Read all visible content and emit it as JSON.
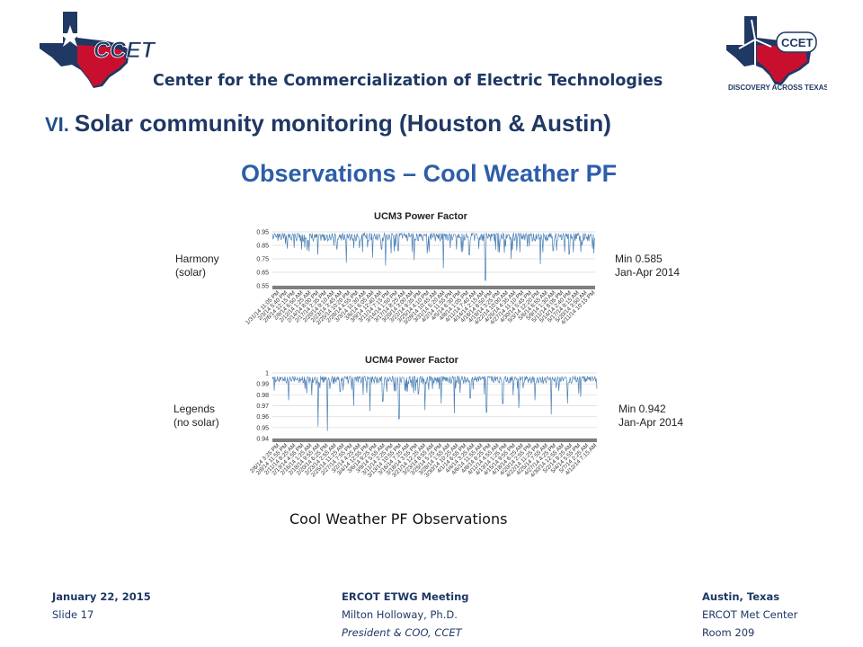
{
  "header": {
    "left_logo_text": "CCET",
    "right_logo_text": "CCET",
    "right_logo_tagline": "DISCOVERY ACROSS TEXAS",
    "org_name": "Center for the Commercialization of Electric Technologies",
    "section_number": "VI.",
    "section_title": "Solar community monitoring (Houston & Austin)"
  },
  "slide": {
    "title": "Observations – Cool Weather PF",
    "caption": "Cool Weather PF Observations"
  },
  "colors": {
    "navy": "#1f3864",
    "title_blue": "#2e5ea8",
    "series": "#4a7fb5",
    "texas_red": "#c8102e"
  },
  "chart_data": [
    {
      "type": "line",
      "title": "UCM3 Power Factor",
      "ylim": [
        0.55,
        0.95
      ],
      "y_ticks": [
        "0.95",
        "0.85",
        "0.75",
        "0.65",
        "0.55"
      ],
      "x_tick_labels": [
        "1/31/14 11:05 PM",
        "2/3/14 5:40 PM",
        "2/6/14 12:15 PM",
        "2/9/14 6:50 AM",
        "2/12/14 1:25 AM",
        "2/14/14 8:00 PM",
        "2/17/14 2:35 PM",
        "2/20/14 9:10 AM",
        "2/23/14 3:45 AM",
        "2/25/14 10:20 PM",
        "2/28/14 4:55 PM",
        "3/3/14 11:30 AM",
        "3/6/14 6:05 AM",
        "3/9/14 12:40 AM",
        "3/11/14 7:15 PM",
        "3/14/14 1:50 PM",
        "3/17/14 8:25 AM",
        "3/20/14 3:00 AM",
        "3/22/14 9:35 PM",
        "3/25/14 4:10 PM",
        "3/28/14 10:45 AM",
        "3/31/14 5:20 AM",
        "4/2/14 11:55 PM",
        "4/5/14 6:30 PM",
        "4/8/14 1:05 PM",
        "4/11/14 7:40 AM",
        "4/14/14 2:15 AM",
        "4/16/14 8:50 PM",
        "4/19/14 3:25 PM",
        "4/22/14 10:00 AM",
        "4/25/14 4:35 AM",
        "4/27/14 11:10 PM",
        "4/30/14 5:45 PM",
        "5/3/14 12:20 PM",
        "5/6/14 6:55 AM",
        "5/9/14 1:30 AM",
        "5/11/14 8:05 PM",
        "5/14/14 2:40 PM",
        "5/17/14 9:15 AM",
        "5/20/14 3:50 AM",
        "4/11/14 10:15 PM"
      ],
      "series": [
        {
          "typical_high": 0.94,
          "typical_low": 0.88,
          "dips": [
            [
              0.04,
              0.86
            ],
            [
              0.09,
              0.82
            ],
            [
              0.14,
              0.78
            ],
            [
              0.19,
              0.8
            ],
            [
              0.23,
              0.72
            ],
            [
              0.27,
              0.83
            ],
            [
              0.31,
              0.76
            ],
            [
              0.35,
              0.7
            ],
            [
              0.39,
              0.81
            ],
            [
              0.44,
              0.74
            ],
            [
              0.48,
              0.79
            ],
            [
              0.53,
              0.68
            ],
            [
              0.57,
              0.82
            ],
            [
              0.61,
              0.78
            ],
            [
              0.66,
              0.59
            ],
            [
              0.7,
              0.8
            ],
            [
              0.74,
              0.75
            ],
            [
              0.79,
              0.84
            ],
            [
              0.83,
              0.71
            ],
            [
              0.87,
              0.81
            ],
            [
              0.92,
              0.78
            ],
            [
              0.96,
              0.85
            ]
          ]
        }
      ],
      "side_label": [
        "Harmony",
        "(solar)"
      ],
      "annotation": [
        "Min 0.585",
        "Jan-Apr 2014"
      ]
    },
    {
      "type": "line",
      "title": "UCM4 Power Factor",
      "ylim": [
        0.94,
        1.0
      ],
      "y_ticks": [
        "1",
        "0.99",
        "0.98",
        "0.97",
        "0.96",
        "0.95",
        "0.94"
      ],
      "x_tick_labels": [
        "2/6/14 3:25 PM",
        "2/8/14 11:55 PM",
        "2/11/14 8:25 AM",
        "2/13/14 4:55 PM",
        "2/16/14 1:25 AM",
        "2/18/14 9:55 AM",
        "2/20/14 6:25 PM",
        "2/23/14 2:55 AM",
        "2/25/14 11:25 AM",
        "2/27/14 7:55 PM",
        "3/2/14 4:25 AM",
        "3/4/14 12:55 PM",
        "3/6/14 9:25 PM",
        "3/9/14 5:55 AM",
        "3/11/14 2:25 PM",
        "3/13/14 10:55 PM",
        "3/16/14 7:25 AM",
        "3/18/14 3:55 PM",
        "3/21/14 12:25 AM",
        "3/23/14 8:55 AM",
        "3/25/14 5:25 PM",
        "3/28/14 1:55 AM",
        "3/30/14 10:25 AM",
        "4/1/14 6:55 PM",
        "4/4/14 3:25 AM",
        "4/6/14 11:55 AM",
        "4/8/14 8:25 PM",
        "4/11/14 4:55 AM",
        "4/13/14 1:25 PM",
        "4/15/14 9:55 PM",
        "4/18/14 6:25 AM",
        "4/20/14 2:55 PM",
        "4/22/14 11:25 PM",
        "4/25/14 7:55 AM",
        "4/27/14 4:25 PM",
        "4/30/14 12:55 AM",
        "5/2/14 9:25 AM",
        "5/4/14 5:55 PM",
        "5/7/14 2:25 AM",
        "4/12/14 7:15 AM"
      ],
      "series": [
        {
          "typical_high": 0.997,
          "typical_low": 0.99,
          "dips": [
            [
              0.05,
              0.975
            ],
            [
              0.1,
              0.968
            ],
            [
              0.14,
              0.951
            ],
            [
              0.17,
              0.947
            ],
            [
              0.21,
              0.962
            ],
            [
              0.25,
              0.97
            ],
            [
              0.3,
              0.965
            ],
            [
              0.34,
              0.974
            ],
            [
              0.39,
              0.958
            ],
            [
              0.43,
              0.969
            ],
            [
              0.47,
              0.966
            ],
            [
              0.52,
              0.972
            ],
            [
              0.56,
              0.963
            ],
            [
              0.61,
              0.977
            ],
            [
              0.66,
              0.964
            ],
            [
              0.71,
              0.972
            ],
            [
              0.76,
              0.968
            ],
            [
              0.81,
              0.975
            ],
            [
              0.86,
              0.962
            ],
            [
              0.91,
              0.972
            ],
            [
              0.95,
              0.978
            ]
          ]
        }
      ],
      "side_label": [
        "Legends",
        "(no solar)"
      ],
      "annotation": [
        "Min 0.942",
        "Jan-Apr 2014"
      ]
    }
  ],
  "footer": {
    "left": {
      "date": "January 22, 2015",
      "slide": "Slide 17"
    },
    "center": {
      "event": "ERCOT ETWG Meeting",
      "presenter": "Milton Holloway, Ph.D.",
      "role": "President & COO, CCET"
    },
    "right": {
      "city": "Austin, Texas",
      "venue": "ERCOT Met Center",
      "room": "Room 209"
    }
  }
}
